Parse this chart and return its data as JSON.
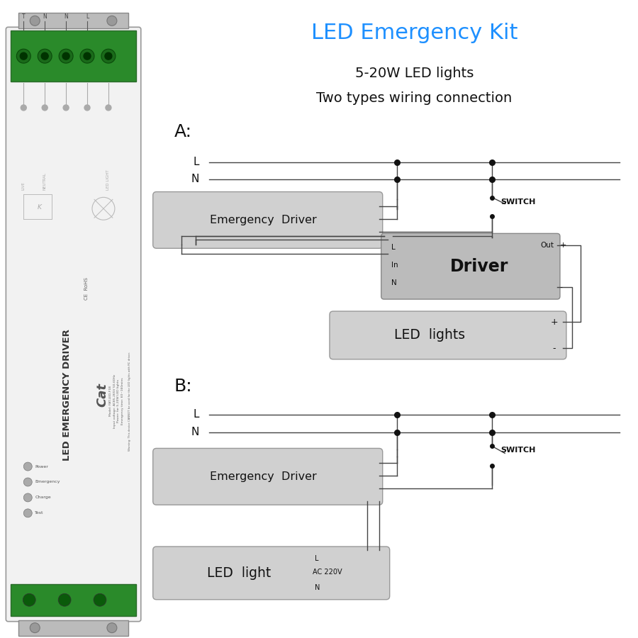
{
  "title": "LED Emergency Kit",
  "subtitle1": "5-20W LED lights",
  "subtitle2": "Two types wiring connection",
  "title_color": "#1E90FF",
  "subtitle_color": "#111111",
  "section_a_label": "A:",
  "section_b_label": "B:",
  "bg_color": "#FFFFFF",
  "line_color": "#444444",
  "box_fill_ed": "#D0D0D0",
  "box_fill_driver": "#C0C0C0",
  "box_fill_led": "#D0D0D0",
  "dot_color": "#111111",
  "text_color": "#111111",
  "device_fill": "#F2F2F2",
  "device_edge": "#888888",
  "green_conn": "#2A8A2A",
  "metal_fill": "#C0C0C0"
}
